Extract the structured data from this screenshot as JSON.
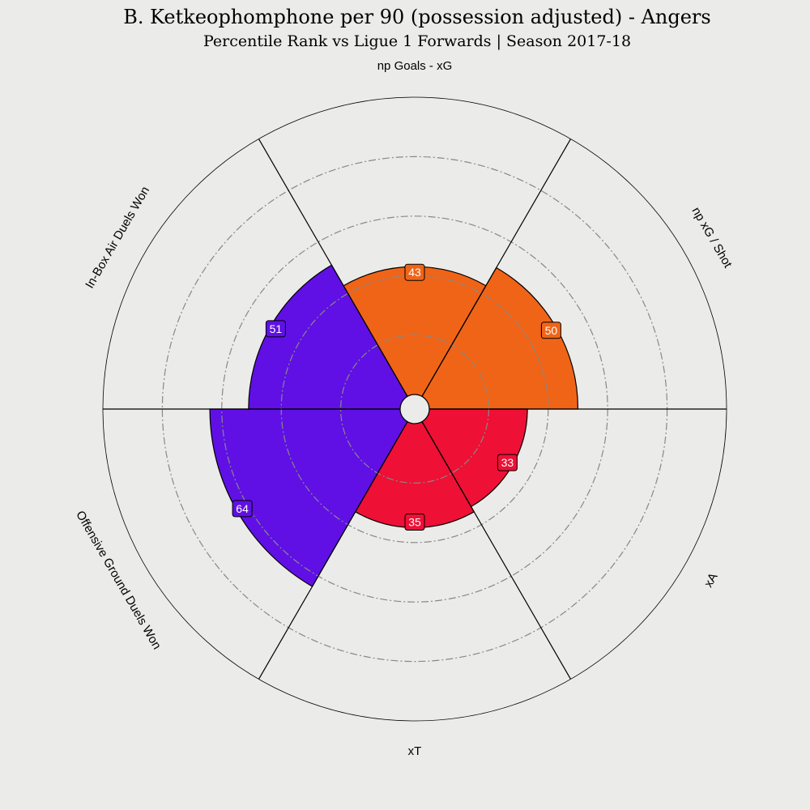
{
  "chart_data": {
    "type": "polar-bar",
    "title": "B. Ketkeophomphone per 90 (possession adjusted) - Angers",
    "subtitle": "Percentile Rank vs Ligue 1 Forwards | Season 2017-18",
    "categories": [
      "np Goals - xG",
      "np xG / Shot",
      "xA",
      "xT",
      "Offensive Ground Duels Won",
      "In-Box Air Duels Won"
    ],
    "values": [
      43,
      50,
      33,
      35,
      64,
      51
    ],
    "colors": [
      "#F06418",
      "#F06418",
      "#EE1035",
      "#EE1035",
      "#6010E4",
      "#6010E4"
    ],
    "range": [
      0,
      100
    ],
    "gridlines": [
      20,
      40,
      60,
      80
    ]
  }
}
